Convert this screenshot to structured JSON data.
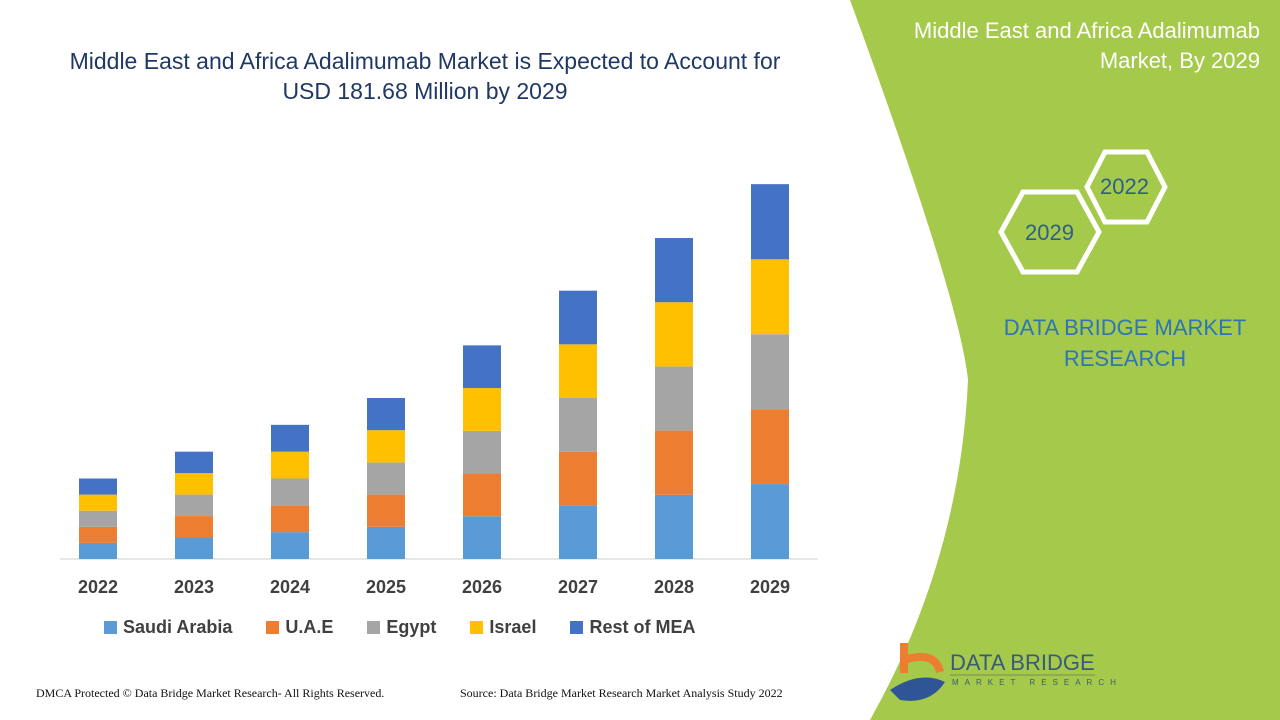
{
  "title": "Middle East and Africa Adalimumab Market is Expected to Account for USD 181.68 Million by 2029",
  "side_title": "Middle East and Africa Adalimumab Market, By 2029",
  "hex_labels": [
    "2022",
    "2029"
  ],
  "brand": "DATA BRIDGE MARKET RESEARCH",
  "logo": {
    "name": "DATA BRIDGE",
    "sub": "MARKET RESEARCH"
  },
  "footer": {
    "left": "DMCA Protected © Data Bridge Market Research- All Rights Reserved.",
    "right": "Source: Data Bridge Market Research Market Analysis Study 2022"
  },
  "colors": {
    "green_panel": "#a5c94a",
    "title": "#1f3864"
  },
  "chart_data": {
    "type": "bar",
    "stacked": true,
    "title": "Middle East and Africa Adalimumab Market is Expected to Account for USD 181.68 Million by 2029",
    "categories": [
      "2022",
      "2023",
      "2024",
      "2025",
      "2026",
      "2027",
      "2028",
      "2029"
    ],
    "series": [
      {
        "name": "Saudi Arabia",
        "color": "#5b9bd5",
        "values": [
          7.8,
          10.4,
          13.0,
          15.6,
          20.7,
          26.0,
          31.1,
          36.3
        ]
      },
      {
        "name": "U.A.E",
        "color": "#ed7d31",
        "values": [
          7.8,
          10.4,
          13.0,
          15.6,
          20.7,
          26.0,
          31.1,
          36.3
        ]
      },
      {
        "name": "Egypt",
        "color": "#a5a5a5",
        "values": [
          7.8,
          10.4,
          13.0,
          15.6,
          20.7,
          26.0,
          31.1,
          36.3
        ]
      },
      {
        "name": "Israel",
        "color": "#ffc000",
        "values": [
          7.8,
          10.4,
          13.0,
          15.6,
          20.7,
          26.0,
          31.1,
          36.3
        ]
      },
      {
        "name": "Rest of MEA",
        "color": "#4472c4",
        "values": [
          7.8,
          10.4,
          13.0,
          15.6,
          20.7,
          26.0,
          31.1,
          36.4
        ]
      }
    ],
    "legend": "bottom",
    "grid": false,
    "yaxis_visible": false
  }
}
